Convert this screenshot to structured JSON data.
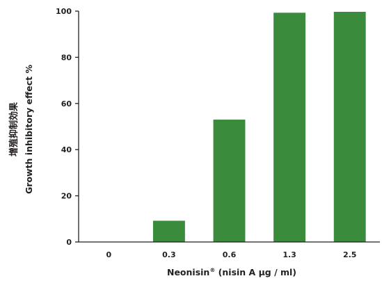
{
  "colors": {
    "bar": "#3a8b3c",
    "axis": "#231f20",
    "text": "#231f20",
    "background": "#ffffff"
  },
  "chart_data": {
    "type": "bar",
    "title": "",
    "categories": [
      "0",
      "0.3",
      "0.6",
      "1.3",
      "2.5"
    ],
    "values": [
      0,
      9.2,
      53,
      99.3,
      99.7
    ],
    "xlabel": "Neonisin",
    "xlabel_sup": "®",
    "xlabel_rest": " (nisin A µg / ml)",
    "ylabel_cn": "增殖抑制効果",
    "ylabel": "Growth inhibitory effect %",
    "ylim": [
      0,
      100
    ],
    "yticks": [
      0,
      20,
      40,
      60,
      80,
      100
    ],
    "grid": false,
    "legend": "none"
  }
}
